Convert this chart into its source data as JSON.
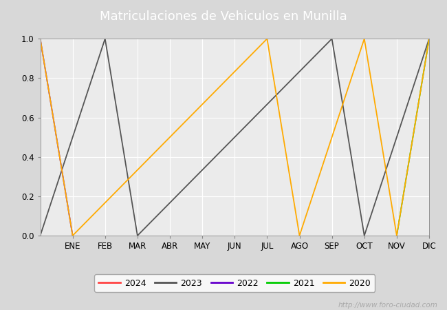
{
  "title": "Matriculaciones de Vehiculos en Munilla",
  "title_bg_color": "#4f86c6",
  "title_text_color": "#ffffff",
  "ylim": [
    0.0,
    1.0
  ],
  "months": [
    "ENE",
    "FEB",
    "MAR",
    "ABR",
    "MAY",
    "JUN",
    "JUL",
    "AGO",
    "SEP",
    "OCT",
    "NOV",
    "DIC"
  ],
  "watermark": "http://www.foro-ciudad.com",
  "series": {
    "2024": {
      "color": "#ff4444",
      "x": [],
      "y": []
    },
    "2023": {
      "color": "#555555",
      "x": [
        0,
        2,
        3,
        9,
        10,
        12
      ],
      "y": [
        0,
        1.0,
        0,
        1.0,
        0,
        1.0
      ]
    },
    "2022": {
      "color": "#6600cc",
      "x": [
        0,
        1
      ],
      "y": [
        1.0,
        0
      ]
    },
    "2021": {
      "color": "#00cc00",
      "x": [
        11,
        12
      ],
      "y": [
        0,
        1.0
      ]
    },
    "2020": {
      "color": "#ffaa00",
      "x": [
        0,
        1,
        7,
        8,
        10,
        11,
        12
      ],
      "y": [
        1.0,
        0,
        1.0,
        0,
        1.0,
        0,
        1.0
      ]
    }
  },
  "legend_order": [
    "2024",
    "2023",
    "2022",
    "2021",
    "2020"
  ],
  "bg_color": "#d8d8d8",
  "plot_bg_color": "#ebebeb",
  "grid_color": "#ffffff",
  "yticks": [
    0.0,
    0.2,
    0.4,
    0.6,
    0.8,
    1.0
  ]
}
